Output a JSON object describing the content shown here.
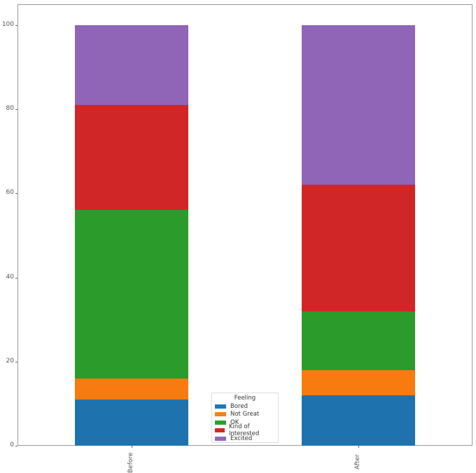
{
  "chart_data": {
    "type": "bar",
    "stacked": true,
    "title": "",
    "xlabel": "",
    "ylabel": "",
    "categories": [
      "Before",
      "After"
    ],
    "series": [
      {
        "name": "Bored",
        "color": "#1f77b4",
        "values": [
          11,
          12
        ]
      },
      {
        "name": "Not Great",
        "color": "#ff7f0e",
        "values": [
          5,
          6
        ]
      },
      {
        "name": "OK",
        "color": "#2ca02c",
        "values": [
          40,
          14
        ]
      },
      {
        "name": "Kind of Interested",
        "color": "#d62728",
        "values": [
          25,
          30
        ]
      },
      {
        "name": "Excited",
        "color": "#9467bd",
        "values": [
          19,
          38
        ]
      }
    ],
    "ylim": [
      0,
      105
    ],
    "yticks": [
      0,
      20,
      40,
      60,
      80,
      100
    ],
    "xtick_rotation": 90,
    "grid": false,
    "legend": {
      "title": "Feeling",
      "position": "lower center"
    }
  }
}
